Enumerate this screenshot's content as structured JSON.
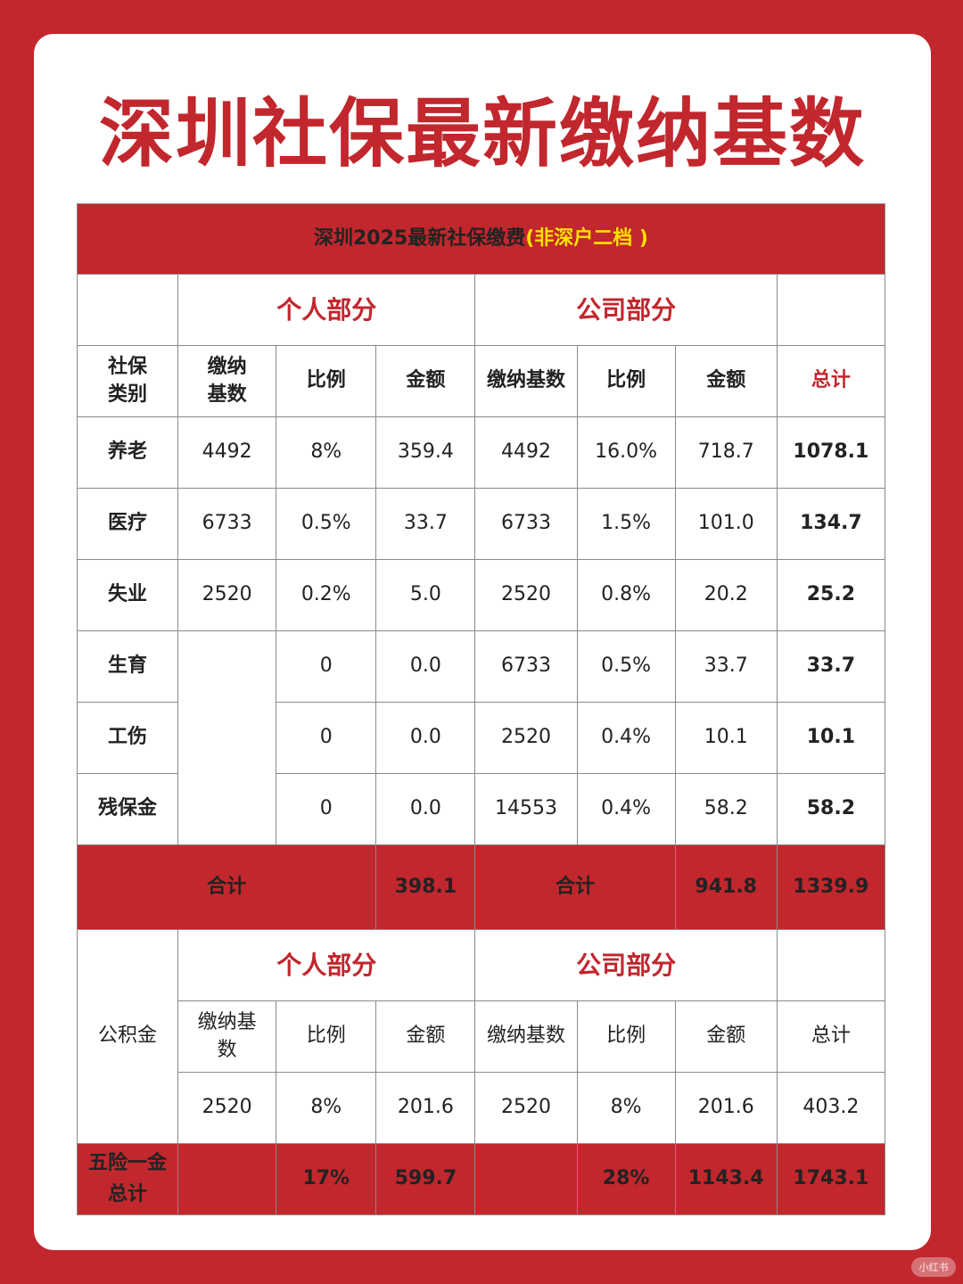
{
  "title": "深圳社保最新缴纳基数",
  "banner": {
    "main": "深圳2025最新社保缴费",
    "highlight": "(非深户二档 )"
  },
  "sections": {
    "personal": "个人部分",
    "company": "公司部分"
  },
  "headers": {
    "category": "社保\n类别",
    "base": "缴纳\n基数",
    "ratio": "比例",
    "amount": "金额",
    "company_base": "缴纳基数",
    "company_ratio": "比例",
    "company_amount": "金额",
    "total": "总计"
  },
  "rows": [
    {
      "category": "养老",
      "p_base": "4492",
      "p_ratio": "8%",
      "p_amount": "359.4",
      "c_base": "4492",
      "c_ratio": "16.0%",
      "c_amount": "718.7",
      "total": "1078.1"
    },
    {
      "category": "医疗",
      "p_base": "6733",
      "p_ratio": "0.5%",
      "p_amount": "33.7",
      "c_base": "6733",
      "c_ratio": "1.5%",
      "c_amount": "101.0",
      "total": "134.7"
    },
    {
      "category": "失业",
      "p_base": "2520",
      "p_ratio": "0.2%",
      "p_amount": "5.0",
      "c_base": "2520",
      "c_ratio": "0.8%",
      "c_amount": "20.2",
      "total": "25.2"
    },
    {
      "category": "生育",
      "p_ratio": "0",
      "p_amount": "0.0",
      "c_base": "6733",
      "c_ratio": "0.5%",
      "c_amount": "33.7",
      "total": "33.7"
    },
    {
      "category": "工伤",
      "p_ratio": "0",
      "p_amount": "0.0",
      "c_base": "2520",
      "c_ratio": "0.4%",
      "c_amount": "10.1",
      "total": "10.1"
    },
    {
      "category": "残保金",
      "p_ratio": "0",
      "p_amount": "0.0",
      "c_base": "14553",
      "c_ratio": "0.4%",
      "c_amount": "58.2",
      "total": "58.2"
    }
  ],
  "subtotal": {
    "label": "合计",
    "personal": "398.1",
    "company_label": "合计",
    "company": "941.8",
    "total": "1339.9"
  },
  "housing_fund": {
    "label": "公积金",
    "headers": {
      "base": "缴纳基\n数",
      "ratio": "比例",
      "amount": "金额",
      "company_base": "缴纳基数",
      "company_ratio": "比例",
      "company_amount": "金额",
      "total": "总计"
    },
    "p_base": "2520",
    "p_ratio": "8%",
    "p_amount": "201.6",
    "c_base": "2520",
    "c_ratio": "8%",
    "c_amount": "201.6",
    "total": "403.2"
  },
  "grand_total": {
    "label": "五险一金\n总计",
    "p_ratio": "17%",
    "p_amount": "599.7",
    "c_ratio": "28%",
    "c_amount": "1143.4",
    "total": "1743.1"
  },
  "watermark": "小红书",
  "colors": {
    "brand_red": "#c1272d",
    "highlight_yellow": "#ffe100"
  }
}
